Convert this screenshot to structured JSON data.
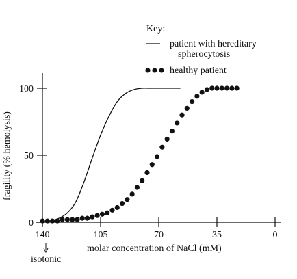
{
  "chart_data": {
    "type": "line",
    "xlabel": "molar concentration of NaCl (mM)",
    "ylabel": "fragility (% hemolysis)",
    "xlim": [
      140,
      0
    ],
    "ylim": [
      0,
      100
    ],
    "x_ticks": [
      "140",
      "105",
      "70",
      "35",
      "0"
    ],
    "y_ticks": [
      "0",
      "50",
      "100"
    ],
    "annotation": "isotonic",
    "key": {
      "title": "Key:",
      "entries": [
        {
          "symbol": "—",
          "style": "solid",
          "label_lines": [
            "patient with hereditary",
            "spherocytosis"
          ]
        },
        {
          "symbol": "●●●",
          "style": "dots",
          "label_lines": [
            "healthy patient"
          ]
        }
      ]
    },
    "series": [
      {
        "name": "patient with hereditary spherocytosis",
        "style": "solid",
        "x": [
          140,
          135,
          130,
          125,
          120,
          115,
          110,
          105,
          100,
          95,
          90,
          85,
          80,
          75,
          70,
          65,
          60,
          57
        ],
        "y": [
          0,
          1,
          3,
          7,
          15,
          30,
          48,
          65,
          79,
          90,
          96,
          99,
          100,
          100,
          100,
          100,
          100,
          100
        ]
      },
      {
        "name": "healthy patient",
        "style": "dots",
        "x": [
          140,
          137,
          134,
          131,
          128,
          125,
          122,
          119,
          116,
          113,
          110,
          107,
          104,
          101,
          98,
          95,
          92,
          89,
          86,
          83,
          80,
          77,
          74,
          71,
          68,
          65,
          62,
          59,
          56,
          53,
          50,
          47,
          44,
          41,
          38,
          35,
          32,
          29,
          26,
          23
        ],
        "y": [
          1,
          1,
          1,
          1,
          2,
          2,
          2,
          2,
          3,
          3,
          4,
          5,
          6,
          7,
          9,
          11,
          14,
          17,
          21,
          26,
          31,
          37,
          43,
          49,
          56,
          62,
          68,
          74,
          80,
          85,
          90,
          94,
          97,
          99,
          100,
          100,
          100,
          100,
          100,
          100
        ]
      }
    ]
  }
}
